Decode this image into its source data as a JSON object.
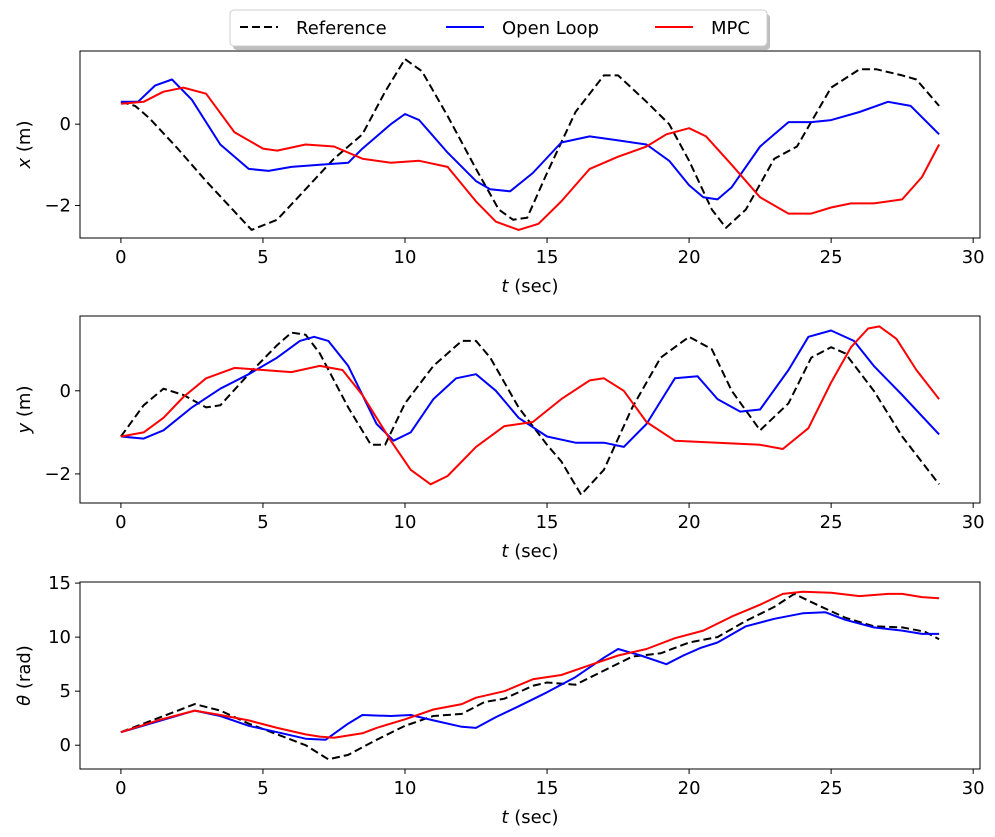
{
  "legend": {
    "placement": "top-center",
    "entries": [
      {
        "label": "Reference",
        "color": "#000000",
        "dash": "dashed"
      },
      {
        "label": "Open Loop",
        "color": "#0000ff",
        "dash": "solid"
      },
      {
        "label": "MPC",
        "color": "#ff0000",
        "dash": "solid"
      }
    ]
  },
  "chart_data": [
    {
      "type": "line",
      "xlabel": "t (sec)",
      "ylabel": "x (m)",
      "xlim": [
        -1.44,
        30.24
      ],
      "ylim": [
        -2.8,
        1.8
      ],
      "xticks": [
        0,
        5,
        10,
        15,
        20,
        25,
        30
      ],
      "xtick_labels": [
        "0",
        "5",
        "10",
        "15",
        "20",
        "25",
        "30"
      ],
      "yticks": [
        -2,
        0
      ],
      "ytick_labels": [
        "−2",
        "0"
      ],
      "grid": false,
      "series": [
        {
          "name": "Reference",
          "color": "#000000",
          "dash": "dashed",
          "x": [
            0,
            0.5,
            1,
            2,
            3,
            4,
            4.6,
            5.5,
            6.5,
            7.5,
            8.5,
            9.3,
            10,
            10.6,
            11.5,
            12.5,
            13.3,
            13.8,
            14.3,
            15,
            16,
            17,
            17.5,
            18.5,
            19.3,
            20,
            20.8,
            21.3,
            22,
            23,
            23.8,
            25,
            26,
            26.6,
            27.5,
            28,
            28.8
          ],
          "y": [
            0.55,
            0.45,
            0.15,
            -0.6,
            -1.4,
            -2.15,
            -2.6,
            -2.35,
            -1.6,
            -0.85,
            -0.25,
            0.8,
            1.6,
            1.3,
            0.2,
            -1.1,
            -2.1,
            -2.35,
            -2.3,
            -1.2,
            0.3,
            1.2,
            1.2,
            0.55,
            0.0,
            -0.9,
            -2.1,
            -2.55,
            -2.1,
            -0.85,
            -0.55,
            0.9,
            1.35,
            1.35,
            1.2,
            1.1,
            0.45
          ]
        },
        {
          "name": "Open Loop",
          "color": "#0000ff",
          "dash": "solid",
          "x": [
            0,
            0.6,
            1.2,
            1.8,
            2.5,
            3.5,
            4.5,
            5.2,
            6,
            7,
            8,
            8.5,
            9.5,
            10,
            10.5,
            11.5,
            12.5,
            13,
            13.7,
            14.5,
            15.5,
            16.5,
            17.5,
            18.5,
            19.3,
            20,
            20.5,
            21,
            21.5,
            22.5,
            23.5,
            24.3,
            25,
            26,
            27,
            27.8,
            28.8
          ],
          "y": [
            0.55,
            0.55,
            0.95,
            1.1,
            0.6,
            -0.5,
            -1.1,
            -1.15,
            -1.05,
            -1.0,
            -0.95,
            -0.6,
            0.0,
            0.25,
            0.1,
            -0.7,
            -1.4,
            -1.6,
            -1.65,
            -1.2,
            -0.45,
            -0.3,
            -0.4,
            -0.5,
            -0.9,
            -1.5,
            -1.8,
            -1.85,
            -1.55,
            -0.55,
            0.05,
            0.05,
            0.1,
            0.3,
            0.55,
            0.45,
            -0.25
          ]
        },
        {
          "name": "MPC",
          "color": "#ff0000",
          "dash": "solid",
          "x": [
            0,
            0.8,
            1.5,
            2.2,
            3,
            4,
            5,
            5.5,
            6.5,
            7.5,
            8.5,
            9.5,
            10.5,
            11.5,
            12.5,
            13.2,
            14,
            14.7,
            15.5,
            16.5,
            17.5,
            18.5,
            19.2,
            20,
            20.6,
            21.5,
            22.5,
            23.5,
            24.3,
            25,
            25.7,
            26.5,
            27.5,
            28.2,
            28.8
          ],
          "y": [
            0.5,
            0.55,
            0.8,
            0.9,
            0.75,
            -0.2,
            -0.6,
            -0.65,
            -0.5,
            -0.55,
            -0.85,
            -0.95,
            -0.9,
            -1.05,
            -1.9,
            -2.4,
            -2.6,
            -2.45,
            -1.9,
            -1.1,
            -0.8,
            -0.55,
            -0.25,
            -0.1,
            -0.3,
            -1.0,
            -1.8,
            -2.2,
            -2.2,
            -2.05,
            -1.95,
            -1.95,
            -1.85,
            -1.3,
            -0.5
          ]
        }
      ]
    },
    {
      "type": "line",
      "xlabel": "t (sec)",
      "ylabel": "y (m)",
      "xlim": [
        -1.44,
        30.24
      ],
      "ylim": [
        -2.7,
        1.8
      ],
      "xticks": [
        0,
        5,
        10,
        15,
        20,
        25,
        30
      ],
      "xtick_labels": [
        "0",
        "5",
        "10",
        "15",
        "20",
        "25",
        "30"
      ],
      "yticks": [
        -2,
        0
      ],
      "ytick_labels": [
        "−2",
        "0"
      ],
      "grid": false,
      "series": [
        {
          "name": "Reference",
          "color": "#000000",
          "dash": "dashed",
          "x": [
            0,
            0.8,
            1.5,
            2.2,
            3,
            3.5,
            4.5,
            5.5,
            6,
            6.5,
            7,
            8,
            8.8,
            9.3,
            10,
            11,
            12,
            12.5,
            13,
            14,
            15,
            15.5,
            16.2,
            17,
            18,
            19,
            20,
            20.8,
            21.5,
            22.5,
            23.5,
            24.3,
            25,
            25.5,
            26.5,
            27.5,
            28.8
          ],
          "y": [
            -1.1,
            -0.35,
            0.05,
            -0.1,
            -0.4,
            -0.35,
            0.4,
            1.1,
            1.4,
            1.35,
            0.9,
            -0.4,
            -1.3,
            -1.3,
            -0.3,
            0.6,
            1.2,
            1.2,
            0.8,
            -0.4,
            -1.3,
            -1.7,
            -2.5,
            -1.9,
            -0.4,
            0.8,
            1.3,
            1.0,
            0.0,
            -0.95,
            -0.3,
            0.8,
            1.05,
            0.9,
            0.0,
            -1.1,
            -2.25
          ]
        },
        {
          "name": "Open Loop",
          "color": "#0000ff",
          "dash": "solid",
          "x": [
            0,
            0.8,
            1.5,
            2.5,
            3.5,
            4.5,
            5.5,
            6.3,
            6.8,
            7.3,
            8,
            9,
            9.6,
            10.2,
            11,
            11.8,
            12.5,
            13.2,
            14,
            15,
            16,
            17,
            17.7,
            18.5,
            19.5,
            20.3,
            21,
            21.8,
            22.5,
            23.5,
            24.2,
            25,
            25.8,
            26.5,
            27.5,
            28.8
          ],
          "y": [
            -1.1,
            -1.15,
            -0.95,
            -0.4,
            0.05,
            0.4,
            0.8,
            1.2,
            1.3,
            1.2,
            0.6,
            -0.8,
            -1.2,
            -1.0,
            -0.2,
            0.3,
            0.4,
            0.0,
            -0.65,
            -1.1,
            -1.25,
            -1.25,
            -1.35,
            -0.8,
            0.3,
            0.35,
            -0.2,
            -0.5,
            -0.45,
            0.5,
            1.3,
            1.45,
            1.2,
            0.6,
            -0.1,
            -1.05
          ]
        },
        {
          "name": "MPC",
          "color": "#ff0000",
          "dash": "solid",
          "x": [
            0,
            0.8,
            1.5,
            2.2,
            3,
            4,
            5,
            6,
            7,
            7.8,
            8.5,
            9.5,
            10.2,
            10.9,
            11.5,
            12.5,
            13.5,
            14.5,
            15.5,
            16.5,
            17,
            17.7,
            18.5,
            19.5,
            21,
            22.5,
            23.3,
            24.2,
            25,
            25.7,
            26.3,
            26.7,
            27.3,
            28,
            28.8
          ],
          "y": [
            -1.1,
            -1.0,
            -0.65,
            -0.15,
            0.3,
            0.55,
            0.5,
            0.45,
            0.6,
            0.5,
            -0.1,
            -1.2,
            -1.9,
            -2.25,
            -2.05,
            -1.35,
            -0.85,
            -0.75,
            -0.2,
            0.25,
            0.3,
            0.0,
            -0.75,
            -1.2,
            -1.25,
            -1.3,
            -1.4,
            -0.9,
            0.2,
            1.05,
            1.5,
            1.55,
            1.25,
            0.5,
            -0.2
          ]
        }
      ]
    },
    {
      "type": "line",
      "xlabel": "t (sec)",
      "ylabel": "θ (rad)",
      "xlim": [
        -1.44,
        30.24
      ],
      "ylim": [
        -2.2,
        15.1
      ],
      "xticks": [
        0,
        5,
        10,
        15,
        20,
        25,
        30
      ],
      "xtick_labels": [
        "0",
        "5",
        "10",
        "15",
        "20",
        "25",
        "30"
      ],
      "yticks": [
        0,
        5,
        10,
        15
      ],
      "ytick_labels": [
        "0",
        "5",
        "10",
        "15"
      ],
      "grid": false,
      "series": [
        {
          "name": "Reference",
          "color": "#000000",
          "dash": "dashed",
          "x": [
            0,
            1.3,
            2.6,
            3.5,
            4.5,
            5.5,
            6.5,
            7.3,
            8,
            9,
            10,
            11,
            12,
            12.8,
            13.5,
            14.5,
            15,
            16,
            17,
            18,
            19,
            20,
            21,
            22,
            23,
            23.7,
            24.5,
            25.5,
            26.5,
            27.5,
            28.3,
            28.8
          ],
          "y": [
            1.2,
            2.5,
            3.8,
            3.2,
            2.0,
            1.0,
            0.0,
            -1.3,
            -0.9,
            0.5,
            1.8,
            2.7,
            2.9,
            4.0,
            4.3,
            5.5,
            5.8,
            5.6,
            6.9,
            8.2,
            8.5,
            9.5,
            10.0,
            11.5,
            12.8,
            14.0,
            13.0,
            11.8,
            11.0,
            10.9,
            10.5,
            9.8
          ]
        },
        {
          "name": "Open Loop",
          "color": "#0000ff",
          "dash": "solid",
          "x": [
            0,
            1.3,
            2.6,
            3.5,
            4.5,
            5.5,
            6.5,
            7.2,
            8,
            8.5,
            9.5,
            10.2,
            11,
            12,
            12.5,
            13.2,
            14,
            15,
            16,
            17,
            17.5,
            18.3,
            19.2,
            19.8,
            20.4,
            21,
            22,
            23,
            24,
            24.8,
            25.5,
            26.5,
            27.5,
            28.2,
            28.8
          ],
          "y": [
            1.2,
            2.2,
            3.2,
            2.7,
            1.8,
            1.2,
            0.6,
            0.5,
            2.0,
            2.8,
            2.7,
            2.8,
            2.3,
            1.7,
            1.6,
            2.6,
            3.6,
            4.9,
            6.3,
            8.1,
            8.9,
            8.3,
            7.5,
            8.3,
            9.0,
            9.5,
            11.0,
            11.7,
            12.2,
            12.3,
            11.6,
            10.9,
            10.6,
            10.3,
            10.3
          ]
        },
        {
          "name": "MPC",
          "color": "#ff0000",
          "dash": "solid",
          "x": [
            0,
            1.3,
            2.6,
            3.5,
            4.5,
            5.5,
            6.5,
            7,
            7.5,
            8.5,
            9,
            10,
            11,
            12,
            12.5,
            13.5,
            14.5,
            15.5,
            16.5,
            17.5,
            18.5,
            19.5,
            20.5,
            21.5,
            22.5,
            23.3,
            24,
            25,
            26,
            27,
            27.5,
            28.2,
            28.8
          ],
          "y": [
            1.2,
            2.3,
            3.2,
            2.8,
            2.3,
            1.6,
            1.0,
            0.8,
            0.7,
            1.1,
            1.6,
            2.4,
            3.3,
            3.8,
            4.4,
            5.0,
            6.1,
            6.5,
            7.4,
            8.3,
            8.9,
            9.9,
            10.6,
            11.9,
            13.0,
            14.0,
            14.2,
            14.1,
            13.8,
            14.0,
            14.0,
            13.7,
            13.6
          ]
        }
      ]
    }
  ]
}
